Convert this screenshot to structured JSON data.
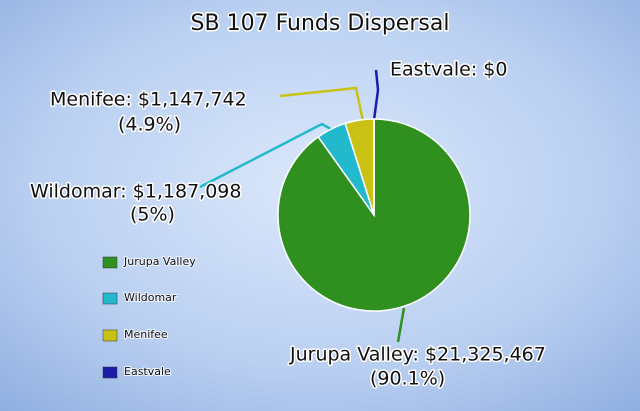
{
  "chart_data": {
    "type": "pie",
    "title": "SB 107 Funds Dispersal",
    "categories": [
      "Jurupa Valley",
      "Wildomar",
      "Menifee",
      "Eastvale"
    ],
    "values": [
      21325467,
      1187098,
      1147742,
      0
    ],
    "value_labels": [
      "Jurupa Valley: $21,325,467",
      "Wildomar: $1,187,098",
      "Menifee: $1,147,742",
      "Eastvale: $0"
    ],
    "colors": [
      "#2f8f1f",
      "#22b9cc",
      "#c9c214",
      "#1c1ca6"
    ],
    "shares": {
      "values": [
        90.1,
        5,
        4.9,
        null
      ],
      "value_labels": [
        "(90.1%)",
        "(5%)",
        "(4.9%)",
        null
      ]
    },
    "legend": "left"
  }
}
